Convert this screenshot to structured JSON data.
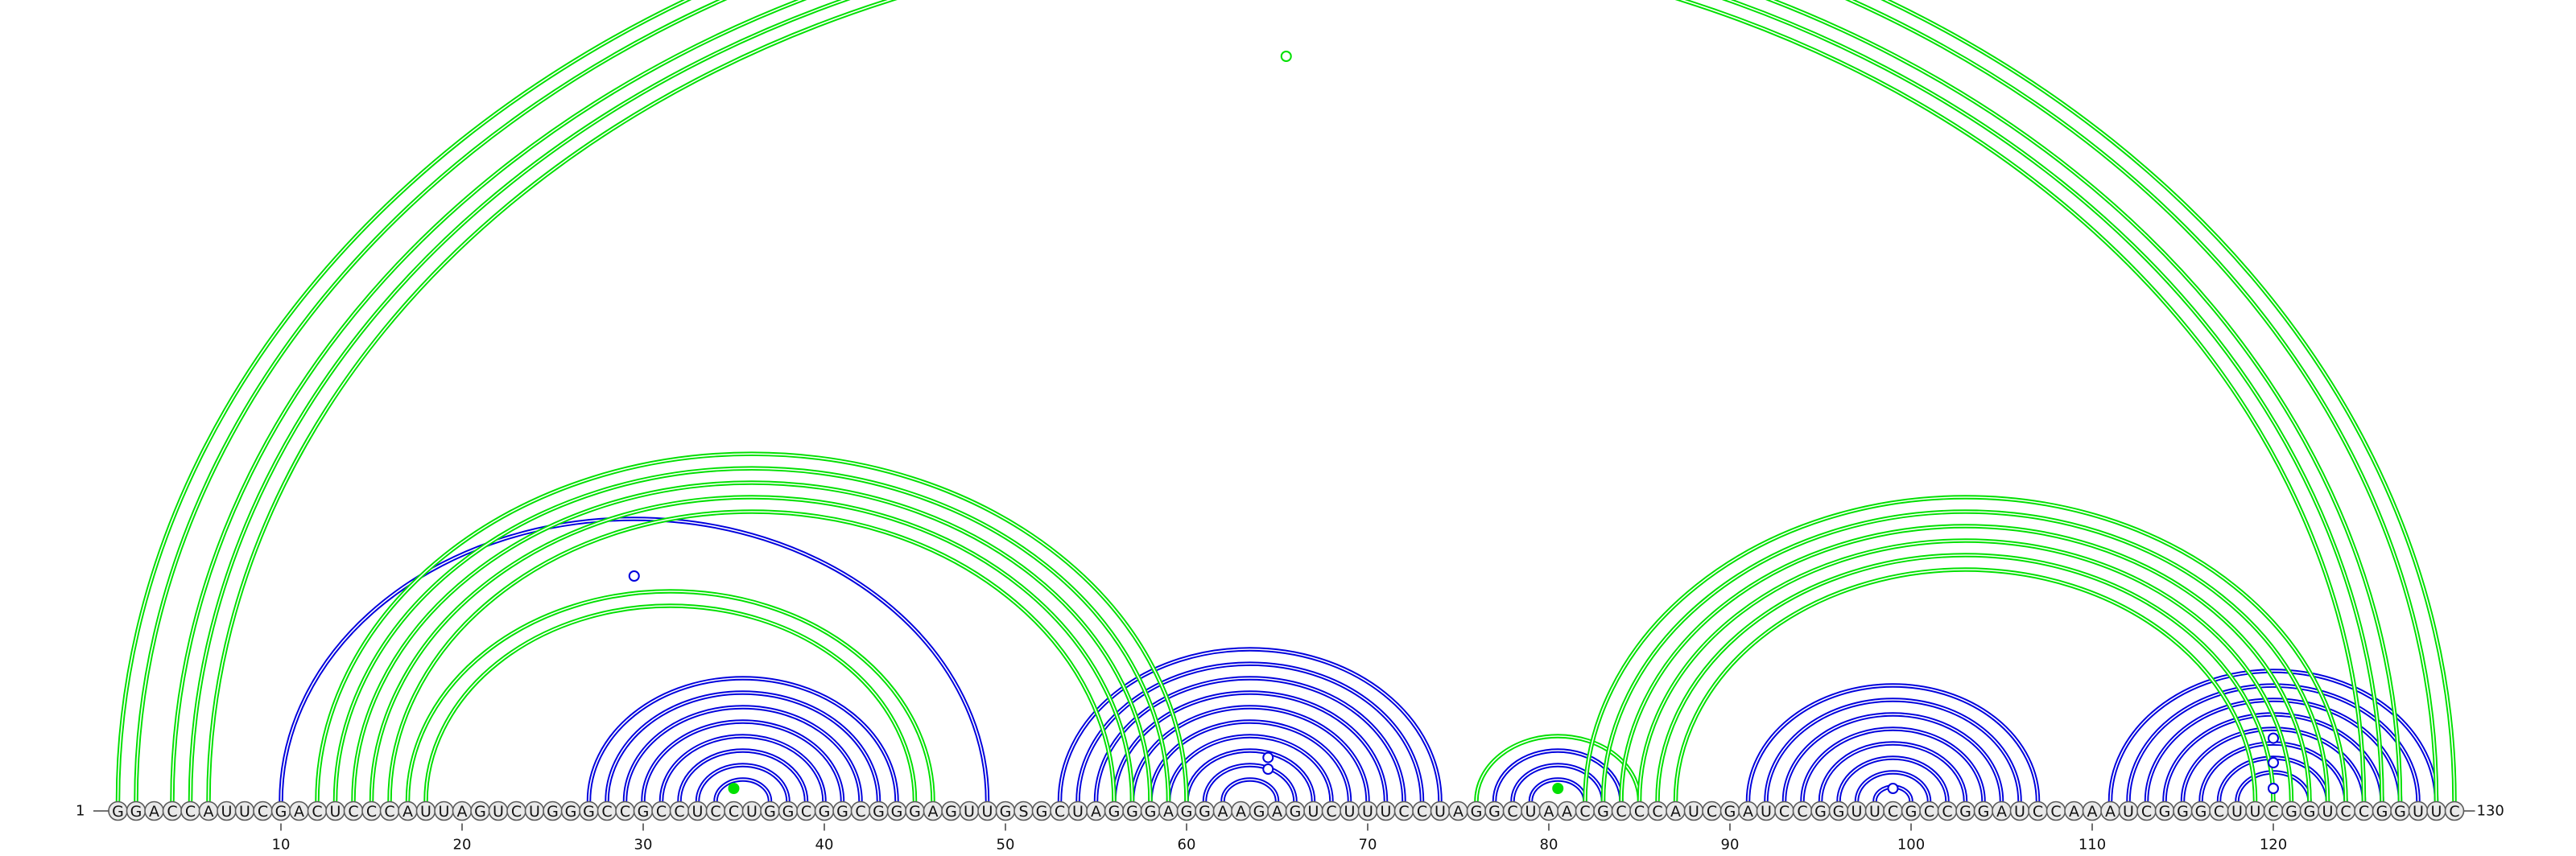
{
  "sequence": "GGACCAUUCGACUCCCAUUAGUCUGGGCCGCCUCCUGGCGGCGGGAGUUGSGCUAGGGAGGAAGAGUCUUUCCUAGGCUAACGCCCAUCGAUCCGGUUCGCCGGAUCCAAAUCGGGCUUCGGUCCGGUUC",
  "start_label": "1",
  "end_label": "130",
  "tick_positions": [
    "10",
    "20",
    "30",
    "40",
    "50",
    "60",
    "70",
    "80",
    "90",
    "100",
    "110",
    "120"
  ],
  "colors": {
    "upper_arcs": "#00e000",
    "lower_arcs": "#0000dd",
    "node_fill": "#e9e9e9",
    "node_stroke": "#5a5a5a"
  },
  "structure_a": {
    "color_key": "upper_arcs",
    "pairs": [
      [
        1,
        130
      ],
      [
        2,
        129
      ],
      [
        4,
        127
      ],
      [
        5,
        126
      ],
      [
        6,
        125
      ],
      [
        12,
        60
      ],
      [
        13,
        59
      ],
      [
        14,
        58
      ],
      [
        15,
        57
      ],
      [
        16,
        56
      ],
      [
        17,
        46
      ],
      [
        18,
        45
      ],
      [
        35,
        35
      ],
      [
        76,
        85
      ],
      [
        82,
        124
      ],
      [
        83,
        123
      ],
      [
        84,
        122
      ],
      [
        85,
        121
      ],
      [
        86,
        120
      ],
      [
        87,
        119
      ]
    ]
  },
  "structure_b": {
    "color_key": "lower_arcs",
    "pairs": [
      [
        10,
        49
      ],
      [
        27,
        44
      ],
      [
        28,
        43
      ],
      [
        29,
        42
      ],
      [
        30,
        41
      ],
      [
        31,
        40
      ],
      [
        32,
        39
      ],
      [
        33,
        38
      ],
      [
        34,
        37
      ],
      [
        53,
        74
      ],
      [
        54,
        73
      ],
      [
        55,
        72
      ],
      [
        56,
        71
      ],
      [
        57,
        70
      ],
      [
        58,
        69
      ],
      [
        59,
        68
      ],
      [
        60,
        67
      ],
      [
        61,
        66
      ],
      [
        62,
        65
      ],
      [
        77,
        84
      ],
      [
        78,
        83
      ],
      [
        79,
        82
      ],
      [
        91,
        107
      ],
      [
        92,
        106
      ],
      [
        93,
        105
      ],
      [
        94,
        104
      ],
      [
        95,
        103
      ],
      [
        96,
        102
      ],
      [
        97,
        101
      ],
      [
        98,
        100
      ],
      [
        111,
        129
      ],
      [
        112,
        128
      ],
      [
        113,
        127
      ],
      [
        114,
        126
      ],
      [
        115,
        125
      ],
      [
        116,
        124
      ],
      [
        117,
        123
      ],
      [
        118,
        122
      ]
    ]
  },
  "markers": [
    {
      "pos": 65.5,
      "level": 1.0,
      "set": "upper_arcs",
      "filled": false
    },
    {
      "pos": 29.5,
      "level": 1.0,
      "set": "lower_arcs",
      "filled": false
    },
    {
      "pos": 35,
      "level": 0.0,
      "set": "upper_arcs",
      "filled": true
    },
    {
      "pos": 80.5,
      "level": 0.0,
      "set": "upper_arcs",
      "filled": true
    },
    {
      "pos": 64.5,
      "level": 0.48,
      "set": "lower_arcs",
      "filled": false
    },
    {
      "pos": 64.5,
      "level": 0.3,
      "set": "lower_arcs",
      "filled": false
    },
    {
      "pos": 99,
      "level": 0.0,
      "set": "lower_arcs",
      "filled": false
    },
    {
      "pos": 120,
      "level": 0.78,
      "set": "lower_arcs",
      "filled": false
    },
    {
      "pos": 120,
      "level": 0.4,
      "set": "lower_arcs",
      "filled": false
    },
    {
      "pos": 120,
      "level": 0.0,
      "set": "lower_arcs",
      "filled": false
    }
  ]
}
